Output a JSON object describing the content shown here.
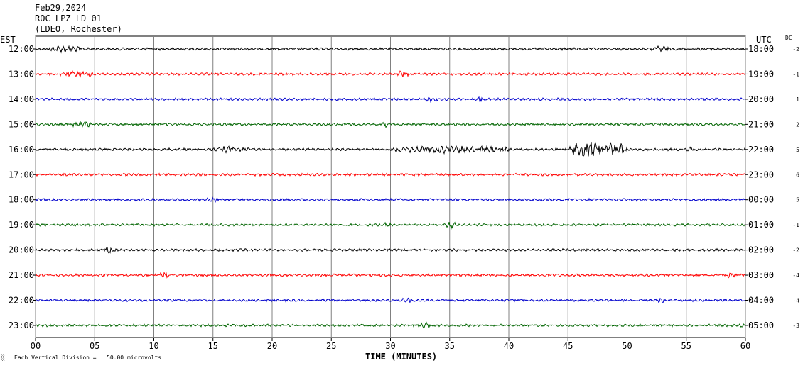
{
  "header": {
    "date": "Feb29,2024",
    "station": "ROC LPZ LD 01",
    "network": "(LDEO, Rochester)"
  },
  "labels": {
    "left_timezone": "EST",
    "right_timezone": "UTC",
    "dc_header": "DC",
    "x_axis": "TIME (MINUTES)",
    "footer_mark": "░",
    "footer": "Each Vertical Division =   50.00 microvolts"
  },
  "colors": {
    "black": "#000000",
    "red": "#ff0000",
    "blue": "#0000cc",
    "green": "#006400",
    "grid": "#808080"
  },
  "chart_data": {
    "type": "line",
    "title": "",
    "xlabel": "TIME (MINUTES)",
    "ylabel": "",
    "xlim": [
      0,
      60
    ],
    "x_ticks": [
      "00",
      "05",
      "10",
      "15",
      "20",
      "25",
      "30",
      "35",
      "40",
      "45",
      "50",
      "55",
      "60"
    ],
    "grid": true,
    "rows": [
      {
        "est": "12:00",
        "utc": "18:00",
        "dc": "-2",
        "color": "black",
        "events": [
          {
            "start": 1,
            "end": 4,
            "amp": 1.6
          },
          {
            "start": 52,
            "end": 53.5,
            "amp": 1.6
          }
        ]
      },
      {
        "est": "13:00",
        "utc": "19:00",
        "dc": "-1",
        "color": "red",
        "events": [
          {
            "start": 2,
            "end": 5,
            "amp": 1.5
          },
          {
            "start": 30.5,
            "end": 31.5,
            "amp": 1.7
          }
        ]
      },
      {
        "est": "14:00",
        "utc": "20:00",
        "dc": "1",
        "color": "blue",
        "events": [
          {
            "start": 33,
            "end": 34,
            "amp": 1.4
          },
          {
            "start": 37,
            "end": 38,
            "amp": 1.4
          }
        ]
      },
      {
        "est": "15:00",
        "utc": "21:00",
        "dc": "2",
        "color": "green",
        "events": [
          {
            "start": 3,
            "end": 5,
            "amp": 1.4
          },
          {
            "start": 29,
            "end": 30,
            "amp": 1.3
          }
        ]
      },
      {
        "est": "16:00",
        "utc": "22:00",
        "dc": "5",
        "color": "black",
        "events": [
          {
            "start": 15,
            "end": 18,
            "amp": 1.5
          },
          {
            "start": 30,
            "end": 40,
            "amp": 1.8
          },
          {
            "start": 45,
            "end": 50,
            "amp": 3.8
          },
          {
            "start": 55,
            "end": 56,
            "amp": 1.6
          }
        ]
      },
      {
        "est": "17:00",
        "utc": "23:00",
        "dc": "6",
        "color": "red",
        "events": []
      },
      {
        "est": "18:00",
        "utc": "00:00",
        "dc": "5",
        "color": "blue",
        "events": [
          {
            "start": 14.5,
            "end": 15.5,
            "amp": 1.3
          }
        ]
      },
      {
        "est": "19:00",
        "utc": "01:00",
        "dc": "-1",
        "color": "green",
        "events": [
          {
            "start": 29.5,
            "end": 30,
            "amp": 1.4
          },
          {
            "start": 34.7,
            "end": 35.5,
            "amp": 1.9
          }
        ]
      },
      {
        "est": "20:00",
        "utc": "02:00",
        "dc": "-2",
        "color": "black",
        "events": [
          {
            "start": 5.8,
            "end": 6.8,
            "amp": 1.6
          }
        ]
      },
      {
        "est": "21:00",
        "utc": "03:00",
        "dc": "-4",
        "color": "red",
        "events": [
          {
            "start": 10.5,
            "end": 11.3,
            "amp": 1.7
          },
          {
            "start": 58.5,
            "end": 59.3,
            "amp": 1.6
          }
        ]
      },
      {
        "est": "22:00",
        "utc": "04:00",
        "dc": "-4",
        "color": "blue",
        "events": [
          {
            "start": 31,
            "end": 32,
            "amp": 1.4
          },
          {
            "start": 52.5,
            "end": 53.3,
            "amp": 1.4
          }
        ]
      },
      {
        "est": "23:00",
        "utc": "05:00",
        "dc": "-3",
        "color": "green",
        "events": [
          {
            "start": 32.5,
            "end": 33.5,
            "amp": 1.6
          },
          {
            "start": 59.5,
            "end": 60,
            "amp": 1.6
          }
        ]
      }
    ]
  }
}
